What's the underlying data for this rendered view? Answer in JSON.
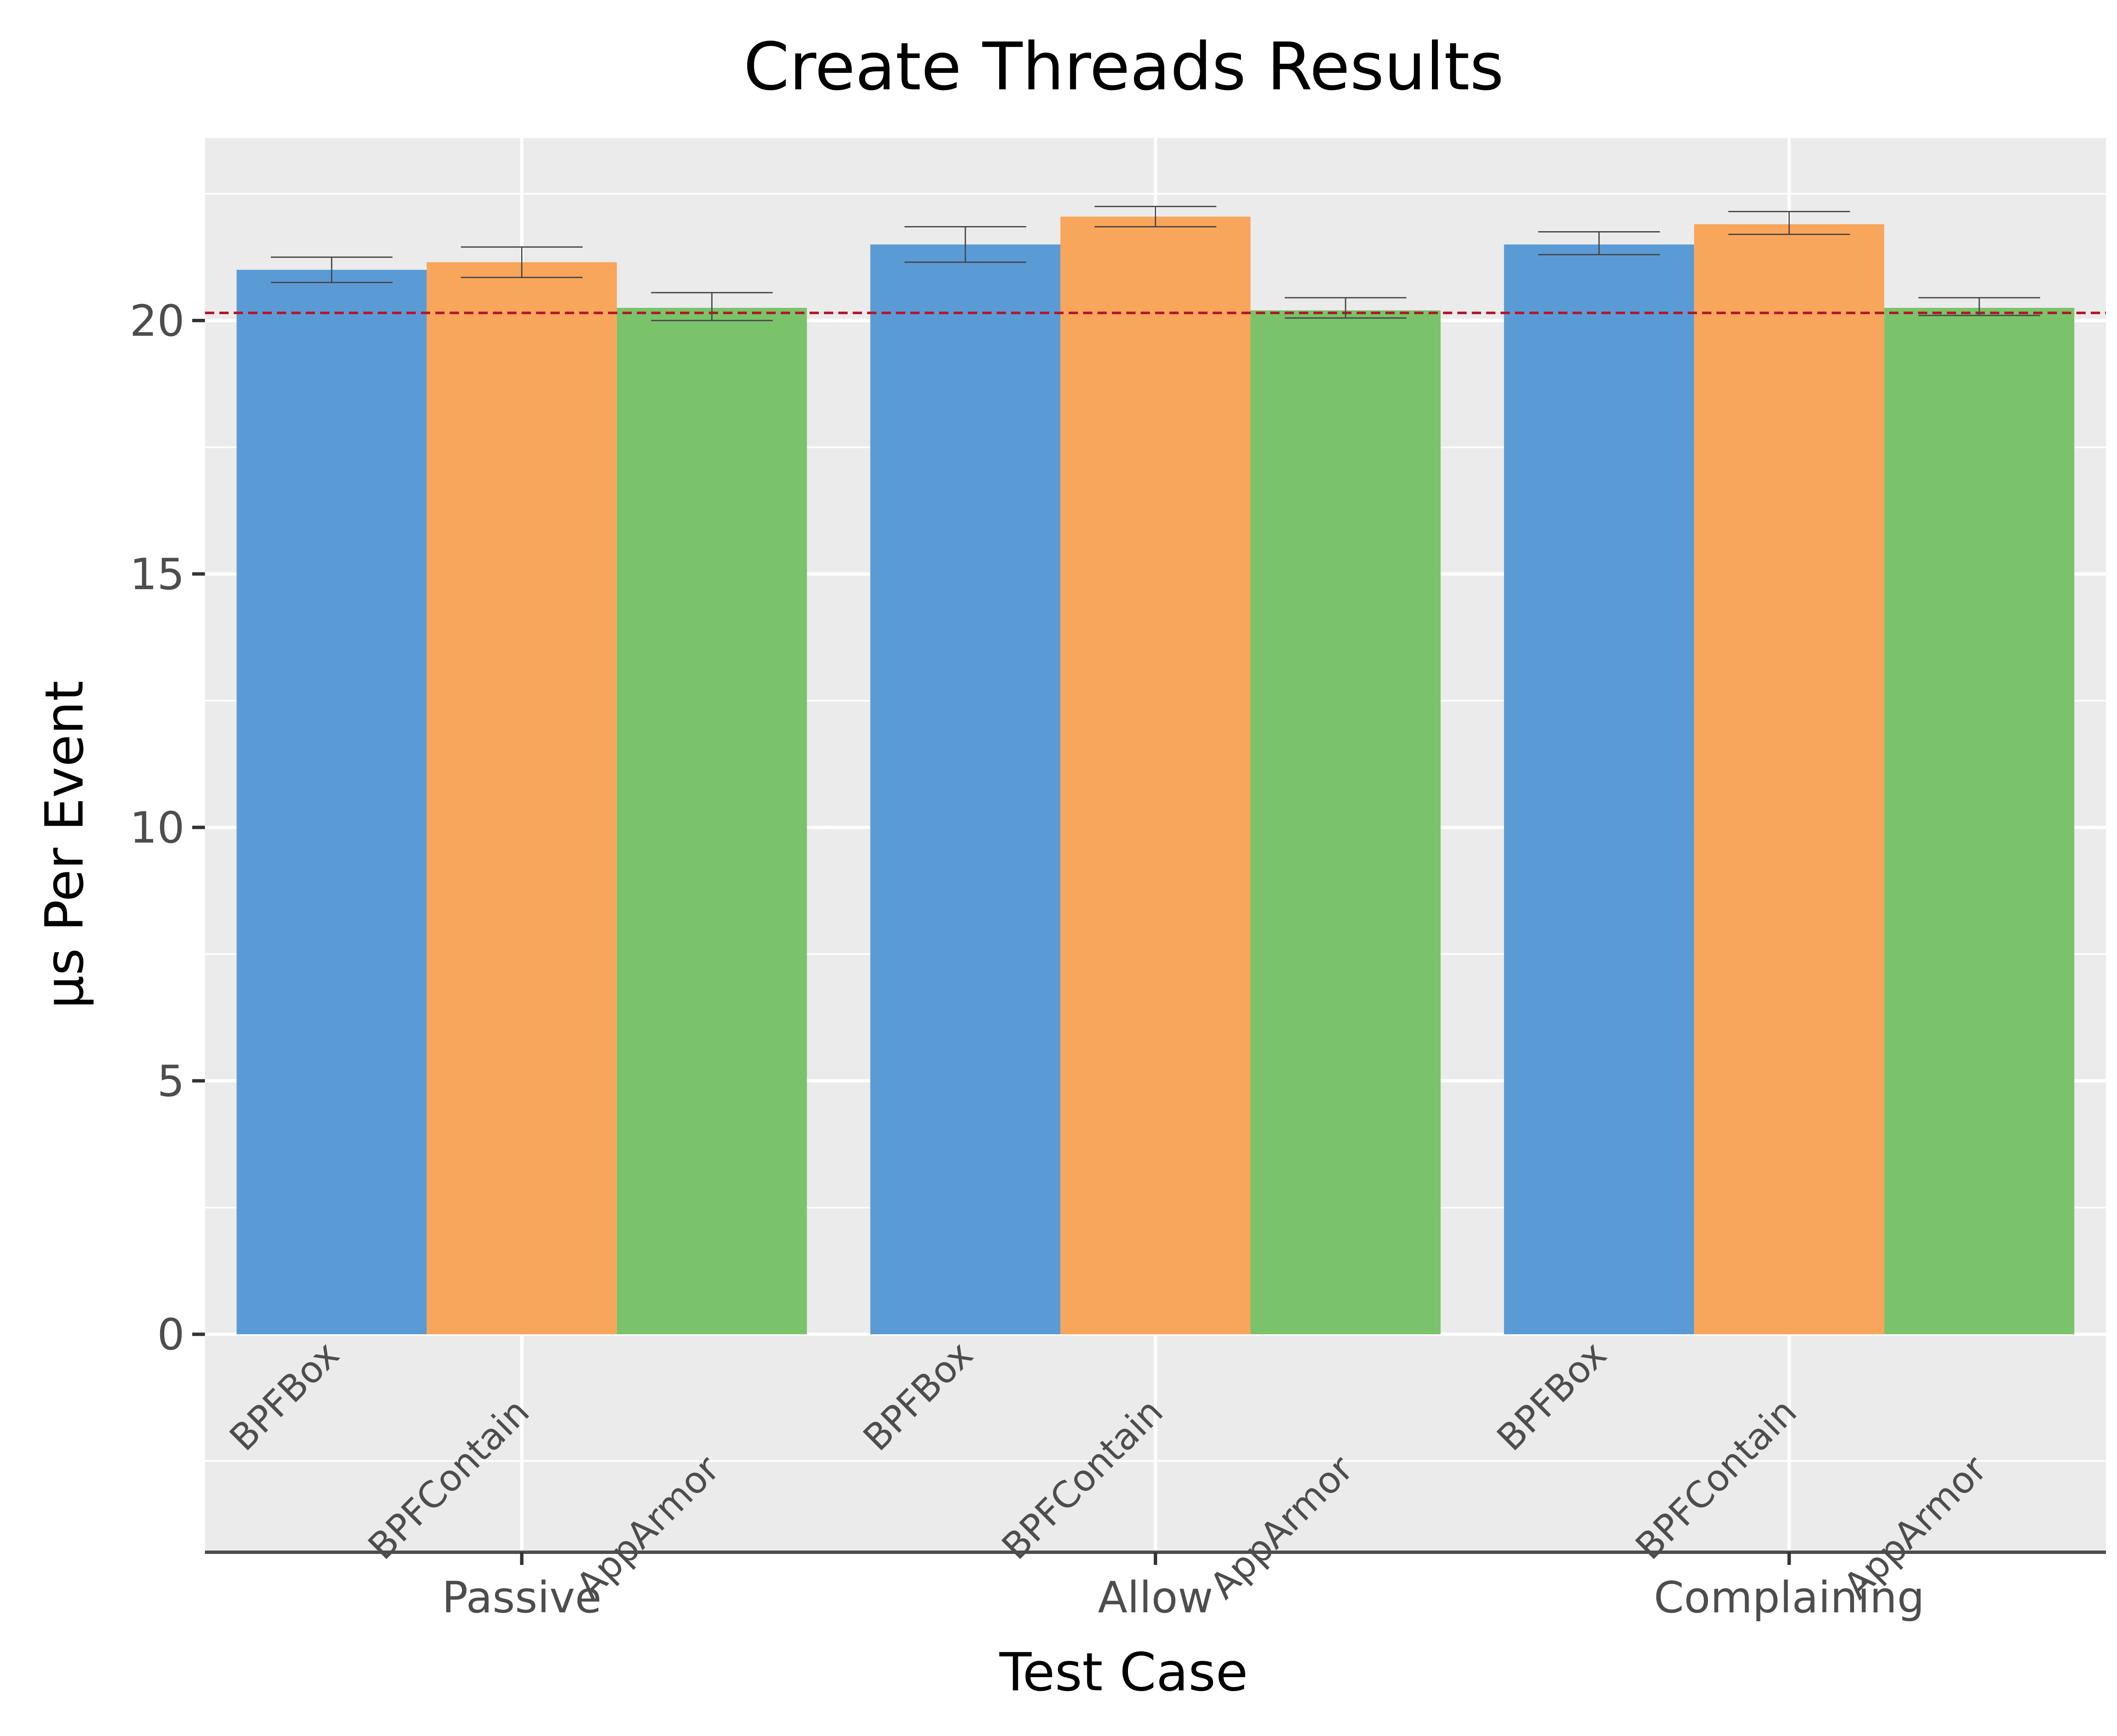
{
  "chart_data": {
    "type": "bar",
    "title": "Create Threads Results",
    "xlabel": "Test Case",
    "ylabel": "µs Per Event",
    "categories": [
      "Passive",
      "Allow",
      "Complaining"
    ],
    "series": [
      {
        "name": "BPFBox",
        "color": "#5b9bd5",
        "values": [
          21.0,
          21.5,
          21.5
        ],
        "err_low": [
          20.75,
          21.15,
          21.3
        ],
        "err_high": [
          21.25,
          21.85,
          21.75
        ]
      },
      {
        "name": "BPFContain",
        "color": "#f8a65b",
        "values": [
          21.15,
          22.05,
          21.9
        ],
        "err_low": [
          20.85,
          21.85,
          21.7
        ],
        "err_high": [
          21.45,
          22.25,
          22.15
        ]
      },
      {
        "name": "AppArmor",
        "color": "#7ac36a",
        "values": [
          20.25,
          20.2,
          20.25
        ],
        "err_low": [
          20.0,
          20.05,
          20.1
        ],
        "err_high": [
          20.55,
          20.45,
          20.45
        ]
      }
    ],
    "reference_line": {
      "value": 20.15,
      "color": "#b2182b",
      "style": "dashed"
    },
    "ylim": [
      -4.3,
      23.6
    ],
    "yticks": [
      0,
      5,
      10,
      15,
      20
    ],
    "grid": true,
    "panel_background": "#ebebeb",
    "legend": "none"
  }
}
